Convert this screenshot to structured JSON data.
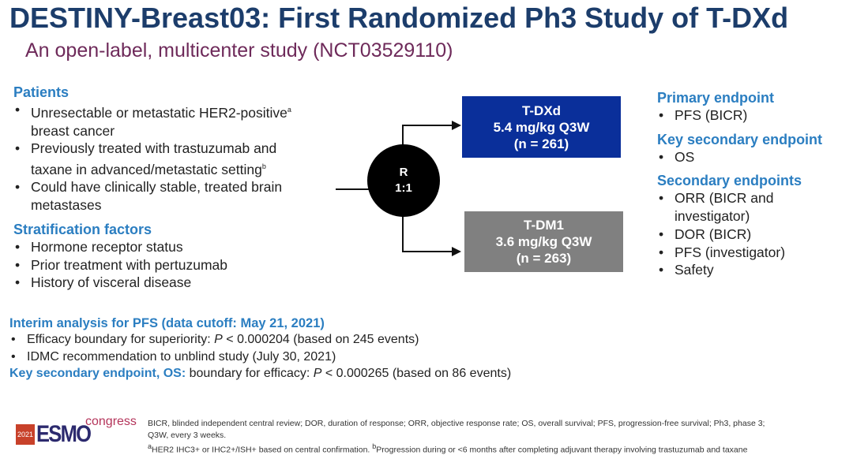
{
  "title": "DESTINY-Breast03: First Randomized Ph3 Study of T-DXd",
  "subtitle": "An open-label, multicenter study (NCT03529110)",
  "patients": {
    "heading": "Patients",
    "items": [
      {
        "text": "Unresectable or metastatic HER2-positive",
        "sup": "a",
        "text2": "breast cancer"
      },
      {
        "text": "Previously treated with trastuzumab and",
        "text2": "taxane in advanced/metastatic setting",
        "sup": "b"
      },
      {
        "text": "Could have clinically stable, treated brain",
        "text2": "metastases"
      }
    ]
  },
  "stratification": {
    "heading": "Stratification factors",
    "items": [
      "Hormone receptor status",
      "Prior treatment with pertuzumab",
      "History of visceral disease"
    ]
  },
  "randomization": {
    "line1": "R",
    "line2": "1:1"
  },
  "arms": [
    {
      "name": "T-DXd",
      "dose": "5.4 mg/kg Q3W",
      "n": "(n = 261)",
      "color": "#0a2f9a"
    },
    {
      "name": "T-DM1",
      "dose": "3.6 mg/kg Q3W",
      "n": "(n = 263)",
      "color": "#808080"
    }
  ],
  "endpoints": {
    "primary_heading": "Primary endpoint",
    "primary": [
      "PFS (BICR)"
    ],
    "key_secondary_heading": "Key secondary endpoint",
    "key_secondary": [
      "OS"
    ],
    "secondary_heading": "Secondary endpoints",
    "secondary": [
      "ORR (BICR and",
      "investigator)",
      "DOR (BICR)",
      "PFS (investigator)",
      "Safety"
    ]
  },
  "interim": {
    "heading": "Interim analysis for PFS (data cutoff: May 21, 2021)",
    "items": [
      {
        "pre": "Efficacy boundary for superiority: ",
        "p": "P",
        "post": " < 0.000204 (based on 245 events)"
      },
      {
        "pre": "IDMC recommendation to unblind study (July 30, 2021)"
      }
    ],
    "os_heading": "Key secondary endpoint, OS:",
    "os_pre": " boundary for efficacy: ",
    "os_p": "P",
    "os_post": " < 0.000265 (based on 86 events)"
  },
  "logo": {
    "year": "2021",
    "name": "ESMO",
    "tag": "congress"
  },
  "footnotes": {
    "line1": "BICR, blinded independent central review; DOR, duration of response; ORR, objective response rate; OS, overall survival; PFS, progression-free survival; Ph3, phase 3;",
    "line2": "Q3W, every 3 weeks.",
    "a_mark": "a",
    "a": "HER2 IHC3+ or IHC2+/ISH+ based on central confirmation. ",
    "b_mark": "b",
    "b": "Progression during or <6 months after completing adjuvant therapy involving trastuzumab and taxane"
  }
}
